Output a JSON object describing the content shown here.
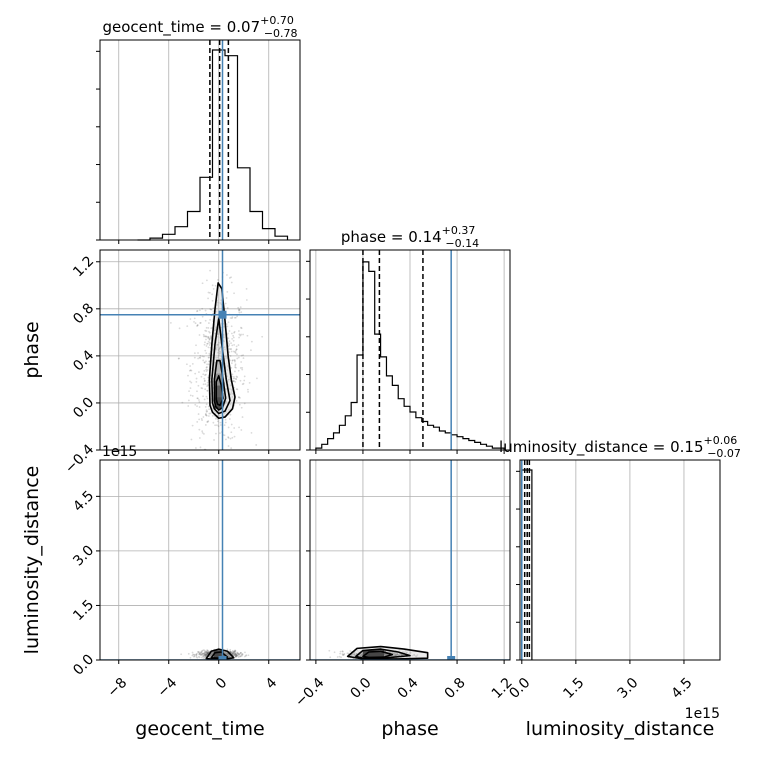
{
  "chart_data": {
    "type": "corner",
    "parameters": [
      "geocent_time",
      "phase",
      "luminosity_distance"
    ],
    "injection": {
      "geocent_time": 0.3,
      "phase": 0.75,
      "luminosity_distance": 0.0
    },
    "offset_text": {
      "luminosity_distance": "1e15"
    },
    "marginals": [
      {
        "param": "geocent_time",
        "title": {
          "base": "geocent_time = 0.07",
          "sup": "+0.70",
          "sub": "−0.78"
        },
        "quantiles": [
          -0.71,
          0.07,
          0.77
        ],
        "xlim": [
          -9.5,
          6.5
        ],
        "bins": [
          -6.5,
          -5.5,
          -4.5,
          -3.5,
          -2.5,
          -1.5,
          -0.5,
          0.5,
          1.5,
          2.5,
          3.5,
          4.5,
          5.5
        ],
        "counts": [
          0,
          0.01,
          0.03,
          0.07,
          0.15,
          0.33,
          1.0,
          0.97,
          0.38,
          0.15,
          0.06,
          0.02
        ]
      },
      {
        "param": "phase",
        "title": {
          "base": "phase = 0.14",
          "sup": "+0.37",
          "sub": "−0.14"
        },
        "quantiles": [
          0.0,
          0.14,
          0.51
        ],
        "xlim": [
          -0.45,
          1.25
        ],
        "bins": [
          -0.4,
          -0.35,
          -0.3,
          -0.25,
          -0.2,
          -0.15,
          -0.1,
          -0.05,
          0.0,
          0.05,
          0.1,
          0.15,
          0.2,
          0.25,
          0.3,
          0.35,
          0.4,
          0.45,
          0.5,
          0.55,
          0.6,
          0.65,
          0.7,
          0.75,
          0.8,
          0.85,
          0.9,
          0.95,
          1.0,
          1.05,
          1.1,
          1.15,
          1.2
        ],
        "counts": [
          0.01,
          0.03,
          0.06,
          0.09,
          0.13,
          0.18,
          0.25,
          0.5,
          0.99,
          0.94,
          0.61,
          0.49,
          0.39,
          0.34,
          0.27,
          0.23,
          0.2,
          0.17,
          0.15,
          0.13,
          0.12,
          0.1,
          0.09,
          0.08,
          0.07,
          0.06,
          0.05,
          0.04,
          0.03,
          0.02,
          0.01,
          0.01
        ]
      },
      {
        "param": "luminosity_distance",
        "title": {
          "base": "luminosity_distance = 0.15",
          "sup": "+0.06",
          "sub": "−0.07"
        },
        "quantiles": [
          0.08,
          0.15,
          0.21
        ],
        "xlim": [
          -0.05,
          5.5
        ],
        "bins": [
          0.0,
          0.28
        ],
        "counts": [
          1.0
        ]
      }
    ],
    "panels": [
      {
        "row": 1,
        "col": 0,
        "x": "geocent_time",
        "y": "phase",
        "xlim": [
          -9.5,
          6.5
        ],
        "ylim": [
          -0.4,
          1.3
        ],
        "scatter_center": [
          0.0,
          0.3
        ],
        "scatter_spread": [
          1.1,
          0.33
        ],
        "contours": [
          [
            [
              -0.7,
              -0.02
            ],
            [
              -0.75,
              0.2
            ],
            [
              -0.55,
              0.5
            ],
            [
              -0.3,
              0.8
            ],
            [
              -0.05,
              1.02
            ],
            [
              0.25,
              0.97
            ],
            [
              0.5,
              0.7
            ],
            [
              0.75,
              0.4
            ],
            [
              1.0,
              0.2
            ],
            [
              1.3,
              0.05
            ],
            [
              1.1,
              -0.05
            ],
            [
              0.5,
              -0.12
            ],
            [
              0.0,
              -0.13
            ],
            [
              -0.5,
              -0.08
            ]
          ],
          [
            [
              -0.5,
              0.0
            ],
            [
              -0.55,
              0.2
            ],
            [
              -0.3,
              0.5
            ],
            [
              0.0,
              0.72
            ],
            [
              0.3,
              0.45
            ],
            [
              0.6,
              0.2
            ],
            [
              0.9,
              0.02
            ],
            [
              0.5,
              -0.07
            ],
            [
              0.0,
              -0.09
            ],
            [
              -0.35,
              -0.05
            ]
          ],
          [
            [
              -0.35,
              0.02
            ],
            [
              -0.35,
              0.2
            ],
            [
              -0.15,
              0.36
            ],
            [
              0.1,
              0.36
            ],
            [
              0.35,
              0.2
            ],
            [
              0.55,
              0.04
            ],
            [
              0.3,
              -0.04
            ],
            [
              0.0,
              -0.06
            ],
            [
              -0.25,
              -0.03
            ]
          ],
          [
            [
              -0.2,
              0.03
            ],
            [
              -0.2,
              0.18
            ],
            [
              0.0,
              0.23
            ],
            [
              0.2,
              0.15
            ],
            [
              0.35,
              0.04
            ],
            [
              0.1,
              -0.02
            ],
            [
              -0.1,
              -0.01
            ]
          ]
        ],
        "density_cells": [
          {
            "x0": -0.35,
            "x1": 0.35,
            "y0": -0.05,
            "y1": 0.05,
            "v": 1.0
          },
          {
            "x0": -0.35,
            "x1": 0.35,
            "y0": 0.05,
            "y1": 0.15,
            "v": 0.85
          },
          {
            "x0": -0.35,
            "x1": 0.35,
            "y0": 0.15,
            "y1": 0.25,
            "v": 0.55
          },
          {
            "x0": -0.35,
            "x1": 0.35,
            "y0": 0.25,
            "y1": 0.35,
            "v": 0.3
          }
        ]
      },
      {
        "row": 2,
        "col": 0,
        "x": "geocent_time",
        "y": "luminosity_distance",
        "xlim": [
          -9.5,
          6.5
        ],
        "ylim": [
          0.0,
          5.5
        ],
        "scatter_center": [
          0.0,
          0.15
        ],
        "scatter_spread": [
          0.8,
          0.05
        ],
        "contours": [
          [
            [
              -1.0,
              0.04
            ],
            [
              -0.6,
              0.24
            ],
            [
              0.0,
              0.3
            ],
            [
              0.7,
              0.24
            ],
            [
              1.2,
              0.06
            ],
            [
              0.6,
              0.03
            ],
            [
              -0.4,
              0.02
            ]
          ],
          [
            [
              -0.6,
              0.06
            ],
            [
              -0.3,
              0.2
            ],
            [
              0.2,
              0.22
            ],
            [
              0.7,
              0.08
            ],
            [
              0.1,
              0.05
            ]
          ]
        ],
        "density_cells": [
          {
            "x0": -0.4,
            "x1": 0.4,
            "y0": 0.05,
            "y1": 0.27,
            "v": 1.0
          }
        ]
      },
      {
        "row": 2,
        "col": 1,
        "x": "phase",
        "y": "luminosity_distance",
        "xlim": [
          -0.45,
          1.25
        ],
        "ylim": [
          0.0,
          5.5
        ],
        "scatter_center": [
          0.12,
          0.15
        ],
        "scatter_spread": [
          0.12,
          0.05
        ],
        "contours": [
          [
            [
              -0.13,
              0.1
            ],
            [
              -0.05,
              0.32
            ],
            [
              0.15,
              0.37
            ],
            [
              0.35,
              0.3
            ],
            [
              0.55,
              0.2
            ],
            [
              0.55,
              0.05
            ],
            [
              0.3,
              0.03
            ],
            [
              0.0,
              0.03
            ]
          ],
          [
            [
              -0.06,
              0.1
            ],
            [
              0.0,
              0.26
            ],
            [
              0.15,
              0.3
            ],
            [
              0.3,
              0.22
            ],
            [
              0.4,
              0.12
            ],
            [
              0.2,
              0.06
            ],
            [
              0.0,
              0.05
            ]
          ],
          [
            [
              0.0,
              0.1
            ],
            [
              0.05,
              0.22
            ],
            [
              0.15,
              0.24
            ],
            [
              0.25,
              0.15
            ],
            [
              0.18,
              0.08
            ],
            [
              0.05,
              0.07
            ]
          ]
        ],
        "density_cells": [
          {
            "x0": 0.0,
            "x1": 0.18,
            "y0": 0.05,
            "y1": 0.27,
            "v": 1.0
          }
        ]
      }
    ],
    "ticks": {
      "geocent_time": {
        "values": [
          -8,
          -4,
          0,
          4
        ],
        "labels": [
          "−8",
          "−4",
          "0",
          "4"
        ]
      },
      "phase": {
        "values": [
          -0.4,
          0.0,
          0.4,
          0.8,
          1.2
        ],
        "labels": [
          "−0.4",
          "0.0",
          "0.4",
          "0.8",
          "1.2"
        ]
      },
      "luminosity_distance": {
        "values": [
          0.0,
          1.5,
          3.0,
          4.5
        ],
        "labels": [
          "0.0",
          "1.5",
          "3.0",
          "4.5"
        ]
      }
    },
    "axis_labels": {
      "geocent_time": "geocent_time",
      "phase": "phase",
      "luminosity_distance": "luminosity_distance"
    },
    "colors": {
      "injection": "#4682b4",
      "hist": "#000000",
      "grid": "#b0b0b0",
      "scatter": "#555555"
    },
    "grid": true
  }
}
